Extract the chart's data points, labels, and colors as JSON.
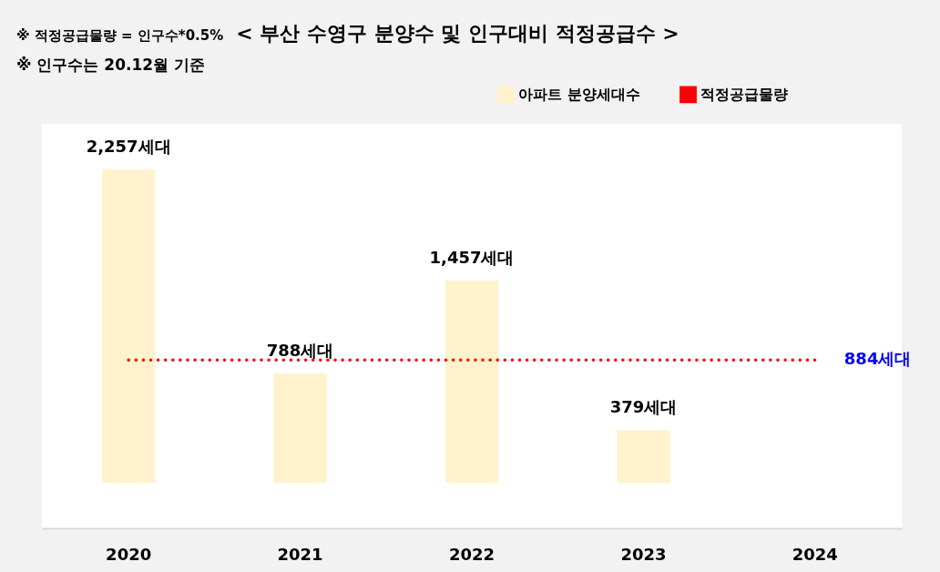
{
  "chart_data": {
    "type": "bar",
    "title": "< 부산 수영구 분양수 및 인구대비 적정공급수 >",
    "annotations": [
      "※ 적정공급물량 = 인구수*0.5%",
      "※ 인구수는 20.12월 기준",
      {
        "text": "884세대",
        "x": "2024",
        "y": 884
      }
    ],
    "categories": [
      "2020",
      "2021",
      "2022",
      "2023",
      "2024"
    ],
    "series": [
      {
        "name": "아파트 분양세대수",
        "color": "#fff2cc",
        "values": [
          2257,
          788,
          1457,
          379,
          null
        ],
        "value_labels": [
          "2,257세대",
          "788세대",
          "1,457세대",
          "379세대",
          null
        ]
      },
      {
        "name": "적정공급물량",
        "type": "line",
        "color": "#ff0000",
        "line_style": "dotted",
        "values": [
          884,
          884,
          884,
          884,
          884
        ]
      }
    ],
    "legend": "top right",
    "grid": false
  }
}
